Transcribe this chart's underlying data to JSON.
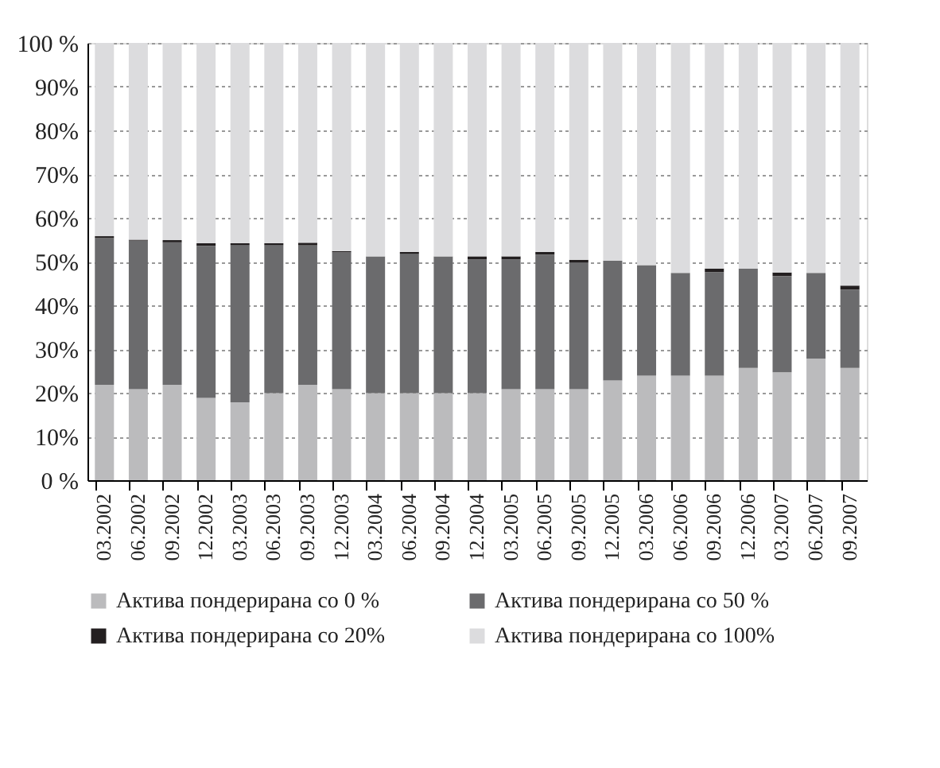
{
  "chart_data": {
    "type": "bar",
    "stacked": true,
    "categories": [
      "03.2002",
      "06.2002",
      "09.2002",
      "12.2002",
      "03.2003",
      "06.2003",
      "09.2003",
      "12.2003",
      "03.2004",
      "06.2004",
      "09.2004",
      "12.2004",
      "03.2005",
      "06.2005",
      "09.2005",
      "12.2005",
      "03.2006",
      "06.2006",
      "09.2006",
      "12.2006",
      "03.2007",
      "06.2007",
      "09.2007"
    ],
    "series": [
      {
        "name": "Актива пондерирана со   0 %",
        "color": "#bbbbbd",
        "values": [
          21.8,
          20.8,
          21.8,
          18.8,
          17.8,
          19.9,
          21.8,
          20.8,
          19.9,
          19.9,
          19.9,
          19.9,
          20.8,
          20.8,
          20.8,
          22.8,
          23.9,
          23.9,
          23.9,
          25.7,
          24.7,
          27.8,
          25.7
        ]
      },
      {
        "name": "Актива пондерирана со   50 %",
        "color": "#6b6b6d",
        "values": [
          33.6,
          34.0,
          32.6,
          34.8,
          36.0,
          33.9,
          31.9,
          31.3,
          31.3,
          31.9,
          31.3,
          30.6,
          29.7,
          30.8,
          29.0,
          27.4,
          25.3,
          23.5,
          23.7,
          22.7,
          22.0,
          19.6,
          17.9
        ]
      },
      {
        "name": "Актива пондерирана со    20%",
        "color": "#231f20",
        "values": [
          0.4,
          0.2,
          0.5,
          0.6,
          0.4,
          0.4,
          0.6,
          0.3,
          0,
          0.4,
          0,
          0.7,
          0.7,
          0.6,
          0.6,
          0,
          0,
          0,
          0.8,
          0,
          0.8,
          0,
          0.9
        ]
      },
      {
        "name": "Актива пондерирана со    100%",
        "color": "#dcdcde",
        "values": [
          44.2,
          45.0,
          45.1,
          45.8,
          45.8,
          45.8,
          45.7,
          47.6,
          48.8,
          47.8,
          48.8,
          48.8,
          48.8,
          47.8,
          49.6,
          49.8,
          50.8,
          52.6,
          51.6,
          51.6,
          52.5,
          52.6,
          55.5
        ]
      }
    ],
    "ylim": [
      0,
      100
    ],
    "yticks": [
      {
        "value": 0,
        "label": "0 %"
      },
      {
        "value": 10,
        "label": "10%"
      },
      {
        "value": 20,
        "label": "20%"
      },
      {
        "value": 30,
        "label": "30%"
      },
      {
        "value": 40,
        "label": "40%"
      },
      {
        "value": 50,
        "label": "50%"
      },
      {
        "value": 60,
        "label": "60%"
      },
      {
        "value": 70,
        "label": "70%"
      },
      {
        "value": 80,
        "label": "80%"
      },
      {
        "value": 90,
        "label": "90%"
      },
      {
        "value": 100,
        "label": "100 %"
      }
    ],
    "grid": "y",
    "legend": "bottom"
  }
}
